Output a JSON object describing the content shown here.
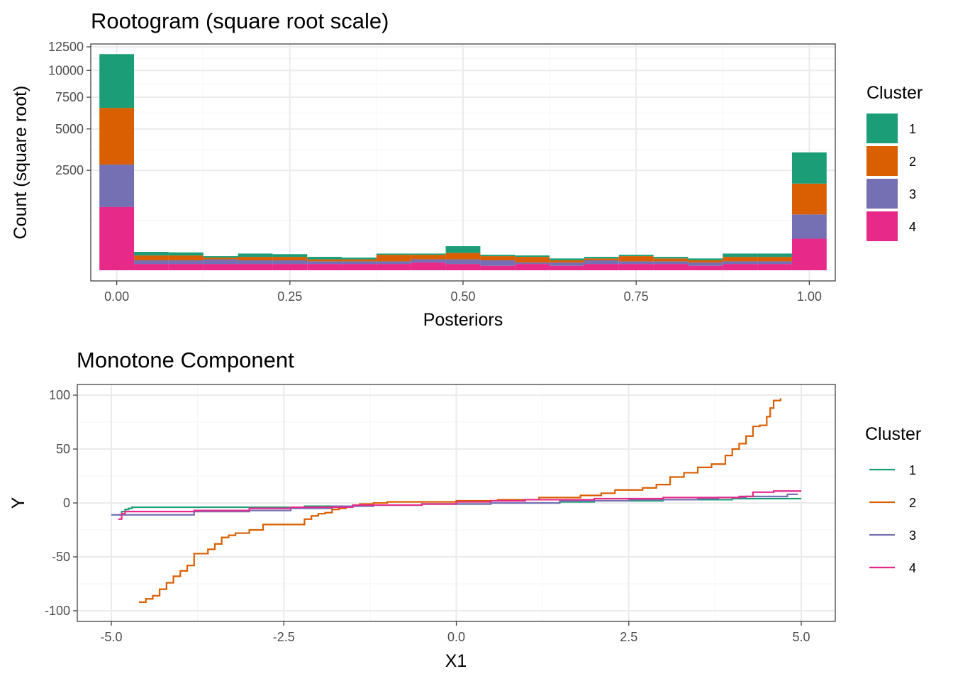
{
  "colors": {
    "cluster_1": "#1B9E77",
    "cluster_2": "#D95F02",
    "cluster_3": "#7570B3",
    "cluster_4": "#E7298A",
    "panel_border": "#333333",
    "grid_major": "#EBEBEB",
    "grid_minor": "#F5F5F5"
  },
  "chart_data": [
    {
      "type": "bar",
      "stacked": true,
      "title": "Rootogram (square root scale)",
      "xlabel": "Posteriors",
      "ylabel": "Count (square root)",
      "y_scale": "sqrt",
      "x_ticks": [
        "0.00",
        "0.25",
        "0.50",
        "0.75",
        "1.00"
      ],
      "y_ticks": [
        "2500",
        "5000",
        "7500",
        "10000",
        "12500"
      ],
      "xlim": [
        -0.0375,
        1.0375
      ],
      "ylim": [
        0,
        12500
      ],
      "grid": true,
      "bin_centers": [
        0.0,
        0.05,
        0.1,
        0.15,
        0.2,
        0.25,
        0.3,
        0.35,
        0.4,
        0.45,
        0.5,
        0.55,
        0.6,
        0.65,
        0.7,
        0.75,
        0.8,
        0.85,
        0.9,
        0.95,
        1.0
      ],
      "legend": {
        "title": "Cluster",
        "position": "right",
        "entries": [
          "1",
          "2",
          "3",
          "4"
        ]
      },
      "series": [
        {
          "name": "1",
          "color": "#1B9E77",
          "values": [
            5100,
            30,
            25,
            10,
            25,
            20,
            15,
            10,
            10,
            10,
            70,
            10,
            10,
            10,
            10,
            10,
            10,
            10,
            25,
            25,
            1600
          ]
        },
        {
          "name": "2",
          "color": "#D95F02",
          "values": [
            3800,
            30,
            30,
            10,
            20,
            20,
            10,
            10,
            40,
            30,
            45,
            25,
            30,
            10,
            10,
            30,
            15,
            10,
            25,
            25,
            1100
          ]
        },
        {
          "name": "3",
          "color": "#7570B3",
          "values": [
            1800,
            15,
            15,
            20,
            15,
            15,
            10,
            10,
            10,
            15,
            20,
            20,
            5,
            10,
            15,
            10,
            10,
            10,
            10,
            10,
            530
          ]
        },
        {
          "name": "4",
          "color": "#E7298A",
          "values": [
            1000,
            10,
            10,
            10,
            10,
            10,
            10,
            10,
            10,
            15,
            10,
            5,
            10,
            5,
            10,
            10,
            10,
            5,
            10,
            10,
            250
          ]
        }
      ]
    },
    {
      "type": "line",
      "title": "Monotone Component",
      "xlabel": "X1",
      "ylabel": "Y",
      "x_ticks": [
        "-5.0",
        "-2.5",
        "0.0",
        "2.5",
        "5.0"
      ],
      "y_ticks": [
        "-100",
        "-50",
        "0",
        "50",
        "100"
      ],
      "xlim": [
        -5.0,
        5.0
      ],
      "ylim": [
        -100,
        100
      ],
      "grid": true,
      "step": true,
      "legend": {
        "title": "Cluster",
        "position": "right",
        "entries": [
          "1",
          "2",
          "3",
          "4"
        ]
      },
      "series": [
        {
          "name": "1",
          "color": "#1B9E77",
          "x": [
            -4.9,
            -4.85,
            -4.8,
            -4.75,
            -4.7,
            -4.6,
            -3.0,
            -2.2,
            -1.5,
            -0.5,
            0.5,
            1.5,
            2.0,
            3.0,
            4.0,
            5.0
          ],
          "y": [
            -11,
            -8,
            -6,
            -5,
            -4,
            -4,
            -4,
            -3,
            -2,
            -1,
            0,
            1,
            2,
            3,
            4,
            4
          ]
        },
        {
          "name": "2",
          "color": "#D95F02",
          "x": [
            -4.6,
            -4.5,
            -4.4,
            -4.3,
            -4.2,
            -4.1,
            -4.0,
            -3.9,
            -3.8,
            -3.6,
            -3.5,
            -3.4,
            -3.3,
            -3.2,
            -3.0,
            -2.8,
            -2.6,
            -2.5,
            -2.2,
            -2.1,
            -2.0,
            -1.9,
            -1.8,
            -1.7,
            -1.6,
            -1.4,
            -1.2,
            -1.0,
            0.0,
            0.6,
            1.2,
            1.8,
            2.1,
            2.3,
            2.7,
            2.9,
            3.1,
            3.3,
            3.5,
            3.7,
            3.9,
            4.0,
            4.1,
            4.2,
            4.3,
            4.4,
            4.5,
            4.55,
            4.6,
            4.7
          ],
          "y": [
            -92,
            -89,
            -86,
            -80,
            -74,
            -68,
            -63,
            -58,
            -47,
            -43,
            -38,
            -32,
            -30,
            -28,
            -25,
            -20,
            -20,
            -20,
            -15,
            -12,
            -10,
            -9,
            -6,
            -5,
            -3,
            -1,
            0,
            1,
            2,
            3,
            5,
            7,
            9,
            12,
            14,
            17,
            24,
            28,
            33,
            36,
            44,
            50,
            55,
            62,
            71,
            72,
            80,
            88,
            95,
            97
          ]
        },
        {
          "name": "3",
          "color": "#7570B3",
          "x": [
            -5.0,
            -4.0,
            -3.8,
            -3.0,
            -2.4,
            -1.8,
            -1.2,
            -0.5,
            0.5,
            1.5,
            2.5,
            3.5,
            3.8,
            4.2,
            4.8,
            4.95
          ],
          "y": [
            -11,
            -11,
            -8,
            -7,
            -5,
            -3,
            -2,
            -1,
            0,
            2,
            3,
            4,
            5,
            6,
            8,
            8
          ]
        },
        {
          "name": "4",
          "color": "#E7298A",
          "x": [
            -4.9,
            -4.85,
            -4.8,
            -4.4,
            -3.8,
            -3.0,
            -2.4,
            -1.5,
            -0.5,
            0.0,
            0.5,
            1.0,
            2.0,
            3.0,
            4.0,
            4.1,
            4.3,
            4.6,
            5.0
          ],
          "y": [
            -15,
            -10,
            -8,
            -8,
            -7,
            -5,
            -4,
            -2,
            -1,
            1,
            2,
            3,
            4,
            5,
            5,
            6,
            10,
            11,
            11
          ]
        }
      ]
    }
  ]
}
